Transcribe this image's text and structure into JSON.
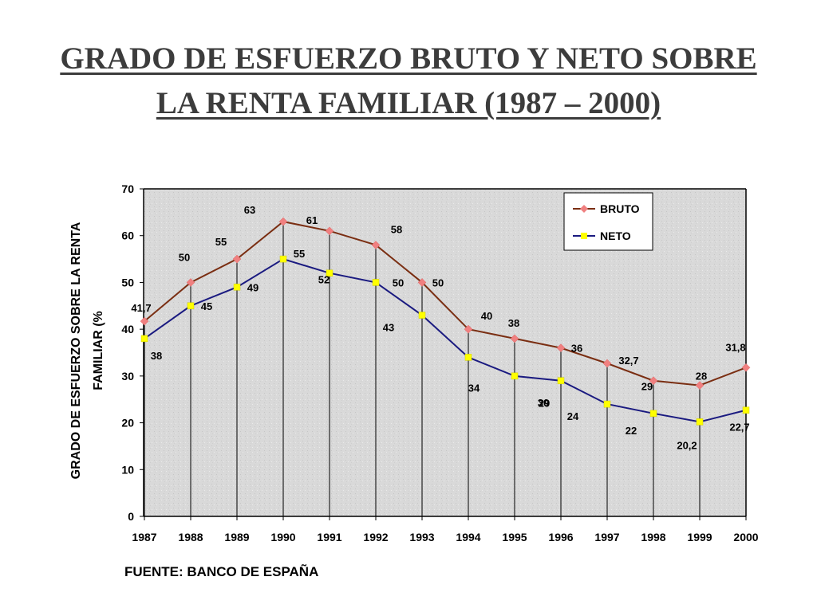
{
  "title": {
    "line1": "GRADO DE ESFUERZO BRUTO Y NETO SOBRE",
    "line2": "LA RENTA FAMILIAR (1987 – 2000)"
  },
  "source": "FUENTE: BANCO DE ESPAÑA",
  "chart_data": {
    "type": "line",
    "ylabel_lines": [
      "GRADO DE ESFUERZO SOBRE LA RENTA",
      "FAMILIAR (%"
    ],
    "xlabel": "",
    "categories": [
      "1987",
      "1988",
      "1989",
      "1990",
      "1991",
      "1992",
      "1993",
      "1994",
      "1995",
      "1996",
      "1997",
      "1998",
      "1999",
      "2000"
    ],
    "ylim": [
      0,
      70
    ],
    "yticks": [
      "0",
      "10",
      "20",
      "30",
      "40",
      "50",
      "60",
      "70"
    ],
    "grid": "vertical drop lines at each year",
    "legend_position": "top-right",
    "series": [
      {
        "name": "BRUTO",
        "color": "#7a2e12",
        "marker_color": "#f08080",
        "marker": "diamond",
        "values": [
          41.7,
          50,
          55,
          63,
          61,
          58,
          50,
          40,
          38,
          36,
          32.7,
          29,
          28,
          31.8
        ],
        "labels": [
          "41,7",
          "50",
          "55",
          "63",
          "61",
          "58",
          "50",
          "40",
          "38",
          "36",
          "32,7",
          "29",
          "28",
          "31,8"
        ]
      },
      {
        "name": "NETO",
        "color": "#1a1a80",
        "marker_color": "#ffff00",
        "marker": "square",
        "values": [
          38,
          45,
          49,
          55,
          52,
          50,
          43,
          34,
          30,
          29,
          24,
          22,
          20.2,
          22.7
        ],
        "labels": [
          "38",
          "45",
          "49",
          "55",
          "52",
          "50",
          "43",
          "34",
          "30",
          "29",
          "24",
          "22",
          "20,2",
          "22,7"
        ]
      }
    ]
  }
}
